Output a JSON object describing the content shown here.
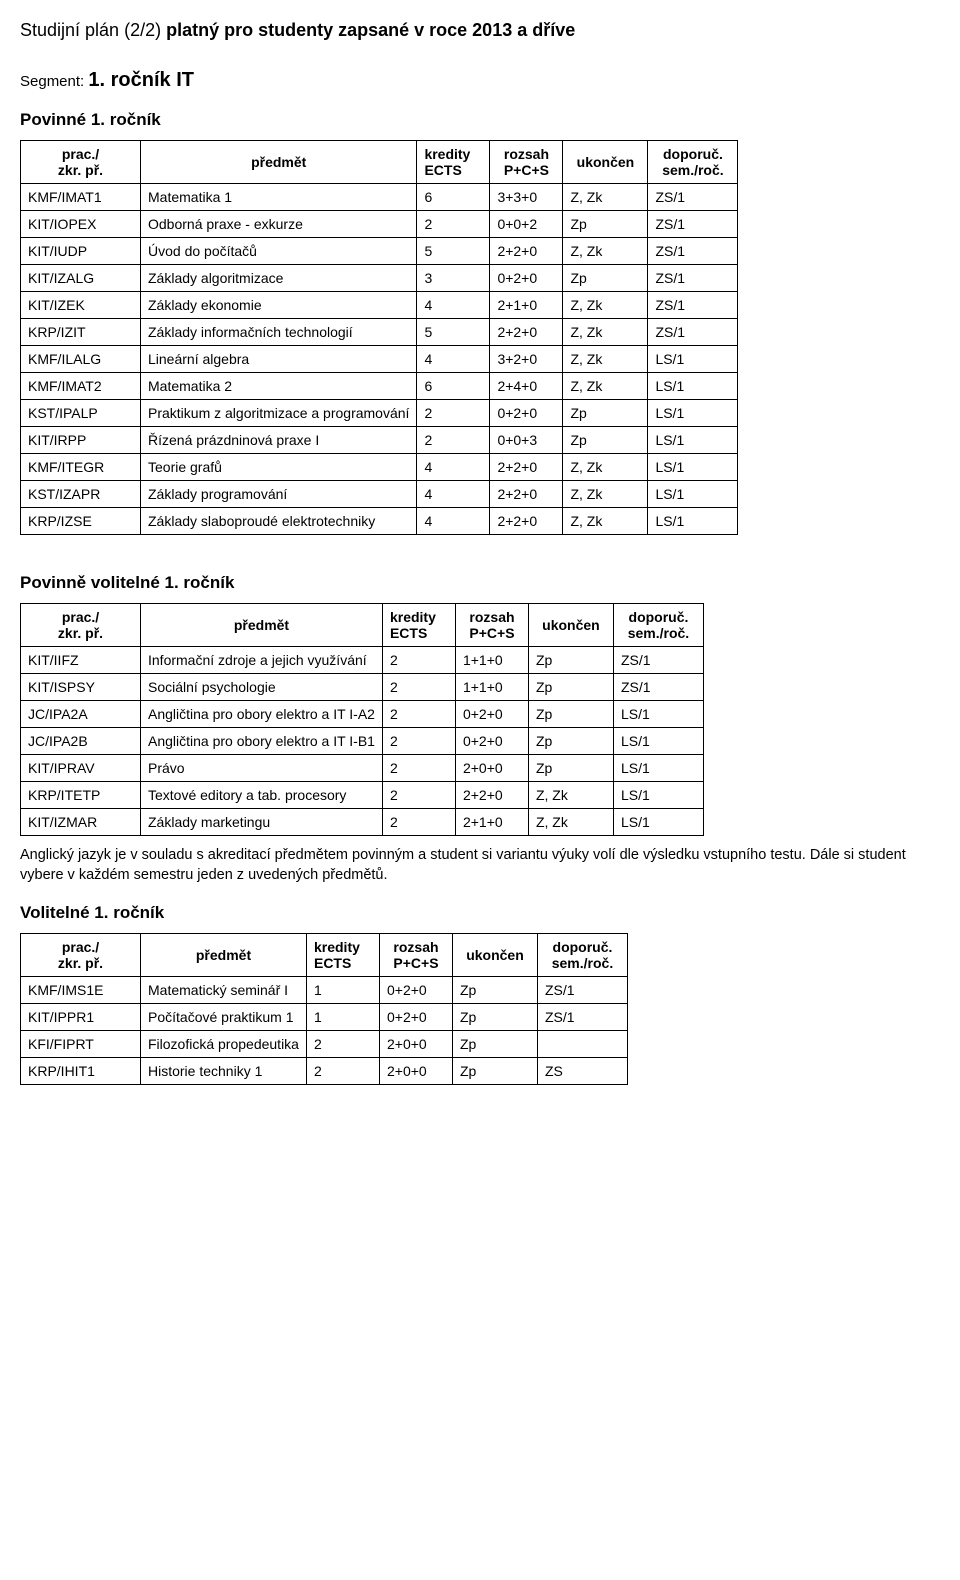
{
  "title": {
    "prefix": "Studijní plán (2/2) ",
    "bold": "platný pro studenty zapsané v roce 2013 a dříve"
  },
  "segment": {
    "label": "Segment: ",
    "value": "1. ročník IT"
  },
  "headers": {
    "code": "prac./\nzkr. př.",
    "subject": "předmět",
    "ects": "kredity\nECTS",
    "rozsah": "rozsah\nP+C+S",
    "ukoncen": "ukončen",
    "sem": "doporuč.\nsem./roč."
  },
  "sections": {
    "povinne": {
      "title": "Povinné 1. ročník",
      "rows": [
        [
          "KMF/IMAT1",
          "Matematika 1",
          "6",
          "3+3+0",
          "Z, Zk",
          "ZS/1"
        ],
        [
          "KIT/IOPEX",
          "Odborná praxe - exkurze",
          "2",
          "0+0+2",
          "Zp",
          "ZS/1"
        ],
        [
          "KIT/IUDP",
          "Úvod do počítačů",
          "5",
          "2+2+0",
          "Z, Zk",
          "ZS/1"
        ],
        [
          "KIT/IZALG",
          "Základy algoritmizace",
          "3",
          "0+2+0",
          "Zp",
          "ZS/1"
        ],
        [
          "KIT/IZEK",
          "Základy ekonomie",
          "4",
          "2+1+0",
          "Z, Zk",
          "ZS/1"
        ],
        [
          "KRP/IZIT",
          "Základy informačních technologií",
          "5",
          "2+2+0",
          "Z, Zk",
          "ZS/1"
        ],
        [
          "KMF/ILALG",
          "Lineární algebra",
          "4",
          "3+2+0",
          "Z, Zk",
          "LS/1"
        ],
        [
          "KMF/IMAT2",
          "Matematika 2",
          "6",
          "2+4+0",
          "Z, Zk",
          "LS/1"
        ],
        [
          "KST/IPALP",
          "Praktikum z algoritmizace a programování",
          "2",
          "0+2+0",
          "Zp",
          "LS/1"
        ],
        [
          "KIT/IRPP",
          "Řízená prázdninová praxe I",
          "2",
          "0+0+3",
          "Zp",
          "LS/1"
        ],
        [
          "KMF/ITEGR",
          "Teorie grafů",
          "4",
          "2+2+0",
          "Z, Zk",
          "LS/1"
        ],
        [
          "KST/IZAPR",
          "Základy programování",
          "4",
          "2+2+0",
          "Z, Zk",
          "LS/1"
        ],
        [
          "KRP/IZSE",
          "Základy slaboproudé elektrotechniky",
          "4",
          "2+2+0",
          "Z, Zk",
          "LS/1"
        ]
      ]
    },
    "povinne_vol": {
      "title": "Povinně volitelné 1. ročník",
      "rows": [
        [
          "KIT/IIFZ",
          "Informační zdroje a jejich využívání",
          "2",
          "1+1+0",
          "Zp",
          "ZS/1"
        ],
        [
          "KIT/ISPSY",
          "Sociální psychologie",
          "2",
          "1+1+0",
          "Zp",
          "ZS/1"
        ],
        [
          "JC/IPA2A",
          "Angličtina pro obory elektro a IT I-A2",
          "2",
          "0+2+0",
          "Zp",
          "LS/1"
        ],
        [
          "JC/IPA2B",
          "Angličtina pro obory elektro a IT I-B1",
          "2",
          "0+2+0",
          "Zp",
          "LS/1"
        ],
        [
          "KIT/IPRAV",
          "Právo",
          "2",
          "2+0+0",
          "Zp",
          "LS/1"
        ],
        [
          "KRP/ITETP",
          "Textové editory a tab. procesory",
          "2",
          "2+2+0",
          "Z, Zk",
          "LS/1"
        ],
        [
          "KIT/IZMAR",
          "Základy marketingu",
          "2",
          "2+1+0",
          "Z, Zk",
          "LS/1"
        ]
      ]
    },
    "volitelne": {
      "title": "Volitelné 1. ročník",
      "rows": [
        [
          "KMF/IMS1E",
          "Matematický seminář I",
          "1",
          "0+2+0",
          "Zp",
          "ZS/1"
        ],
        [
          "KIT/IPPR1",
          "Počítačové praktikum 1",
          "1",
          "0+2+0",
          "Zp",
          "ZS/1"
        ],
        [
          "KFI/FIPRT",
          "Filozofická propedeutika",
          "2",
          "2+0+0",
          "Zp",
          ""
        ],
        [
          "KRP/IHIT1",
          "Historie techniky 1",
          "2",
          "2+0+0",
          "Zp",
          "ZS"
        ]
      ]
    }
  },
  "note": "Anglický jazyk je v souladu s akreditací předmětem povinným a student si variantu výuky volí dle výsledku vstupního testu. Dále si student vybere v každém semestru jeden z uvedených předmětů.",
  "style": {
    "text_color": "#000000",
    "background": "#ffffff",
    "border_color": "#000000",
    "body_fontsize": 14,
    "title_fontsize": 18,
    "section_fontsize": 17
  }
}
